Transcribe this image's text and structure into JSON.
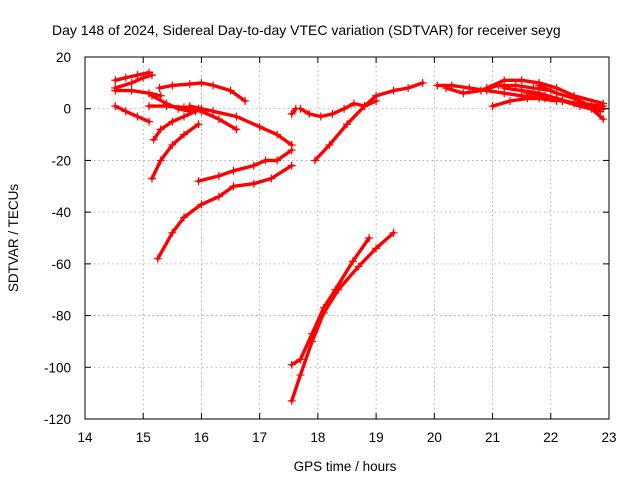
{
  "chart_data": {
    "type": "scatter",
    "title": "Day 148 of 2024, Sidereal Day-to-day VTEC variation (SDTVAR) for receiver seyg",
    "xlabel": "GPS time / hours",
    "ylabel": "SDTVAR / TECUs",
    "xlim": [
      14,
      23
    ],
    "ylim": [
      -120,
      20
    ],
    "xticks": [
      "14",
      "15",
      "16",
      "17",
      "18",
      "19",
      "20",
      "21",
      "22",
      "23"
    ],
    "yticks": [
      "20",
      "0",
      "-20",
      "-40",
      "-60",
      "-80",
      "-100",
      "-120"
    ],
    "grid": true,
    "marker": "plus",
    "color": "#ff0000",
    "series": [
      {
        "x": [
          14.52,
          14.7,
          14.9,
          15.1
        ],
        "y": [
          11,
          12,
          13,
          14
        ]
      },
      {
        "x": [
          14.52,
          14.8,
          15.0,
          15.15
        ],
        "y": [
          8,
          10,
          12,
          13
        ]
      },
      {
        "x": [
          14.52,
          14.8,
          15.1,
          15.3
        ],
        "y": [
          7,
          7,
          6,
          5
        ]
      },
      {
        "x": [
          14.52,
          14.7,
          14.9,
          15.1
        ],
        "y": [
          1,
          -1,
          -3,
          -5
        ]
      },
      {
        "x": [
          15.28,
          15.5,
          15.8,
          16.0,
          16.2,
          16.5,
          16.75
        ],
        "y": [
          8,
          9,
          9.5,
          10,
          9,
          7,
          3
        ]
      },
      {
        "x": [
          15.15,
          15.4,
          15.6,
          15.8,
          15.95
        ],
        "y": [
          5,
          2,
          0,
          -1,
          0
        ]
      },
      {
        "x": [
          15.1,
          15.4,
          15.7,
          16.0,
          16.3,
          16.6
        ],
        "y": [
          1,
          1,
          0.5,
          -1,
          -4,
          -8
        ]
      },
      {
        "x": [
          15.8,
          16.2,
          16.6,
          17.0,
          17.3,
          17.55
        ],
        "y": [
          1,
          -1,
          -3,
          -7,
          -10,
          -14
        ]
      },
      {
        "x": [
          15.18,
          15.3,
          15.5,
          15.7,
          15.9,
          16.0
        ],
        "y": [
          -12,
          -8,
          -5,
          -3,
          -1,
          0
        ]
      },
      {
        "x": [
          15.15,
          15.3,
          15.5,
          15.7,
          15.95
        ],
        "y": [
          -27,
          -20,
          -14,
          -10,
          -6
        ]
      },
      {
        "x": [
          15.25,
          15.5,
          15.7,
          16.0,
          16.3,
          16.55,
          16.9,
          17.2,
          17.55
        ],
        "y": [
          -58,
          -48,
          -42,
          -37,
          -34,
          -30,
          -29,
          -27,
          -22
        ]
      },
      {
        "x": [
          15.95,
          16.3,
          16.55,
          16.9,
          17.1,
          17.3,
          17.55
        ],
        "y": [
          -28,
          -26,
          -24,
          -22,
          -20,
          -20,
          -16
        ]
      },
      {
        "x": [
          17.55,
          17.62
        ],
        "y": [
          -2,
          0
        ]
      },
      {
        "x": [
          17.7,
          17.85,
          18.05,
          18.25,
          18.45,
          18.62,
          18.8,
          19.0
        ],
        "y": [
          0,
          -2,
          -3,
          -2,
          0,
          2,
          1,
          3
        ]
      },
      {
        "x": [
          17.95,
          18.2,
          18.5,
          18.8,
          19.0,
          19.3,
          19.55,
          19.8
        ],
        "y": [
          -20,
          -14,
          -6,
          1,
          5,
          7,
          8,
          10
        ]
      },
      {
        "x": [
          17.55,
          17.7,
          17.9,
          18.1,
          18.3,
          18.6,
          18.88
        ],
        "y": [
          -99,
          -97,
          -87,
          -77,
          -70,
          -59,
          -50
        ]
      },
      {
        "x": [
          17.55,
          17.7,
          17.9,
          18.1,
          18.35,
          18.7,
          19.0,
          19.3
        ],
        "y": [
          -113,
          -103,
          -90,
          -79,
          -70,
          -61,
          -54,
          -48
        ]
      },
      {
        "x": [
          20.05,
          20.3,
          20.6,
          20.9,
          21.2,
          21.5,
          21.8,
          22.1
        ],
        "y": [
          9,
          9,
          8,
          7,
          6,
          5,
          4,
          3
        ]
      },
      {
        "x": [
          20.2,
          20.5,
          20.8,
          21.1,
          21.4,
          21.7,
          22.0
        ],
        "y": [
          8,
          6,
          7,
          9,
          9,
          8,
          7
        ]
      },
      {
        "x": [
          20.9,
          21.2,
          21.5,
          21.8,
          22.1,
          22.4,
          22.9
        ],
        "y": [
          8,
          11,
          11,
          10,
          8,
          5,
          2
        ]
      },
      {
        "x": [
          21.0,
          21.3,
          21.6,
          21.9,
          22.2,
          22.5,
          22.85
        ],
        "y": [
          1,
          3,
          4,
          4,
          3,
          1,
          -1
        ]
      },
      {
        "x": [
          21.2,
          21.5,
          21.8,
          22.1,
          22.4,
          22.7,
          22.9
        ],
        "y": [
          8,
          7,
          6,
          4,
          2,
          0,
          -4
        ]
      },
      {
        "x": [
          21.6,
          21.9,
          22.2,
          22.5,
          22.9
        ],
        "y": [
          6,
          5,
          3,
          2,
          1
        ]
      },
      {
        "x": [
          21.8,
          22.1,
          22.4,
          22.7,
          22.9
        ],
        "y": [
          9,
          6,
          4,
          1,
          0
        ]
      }
    ]
  }
}
